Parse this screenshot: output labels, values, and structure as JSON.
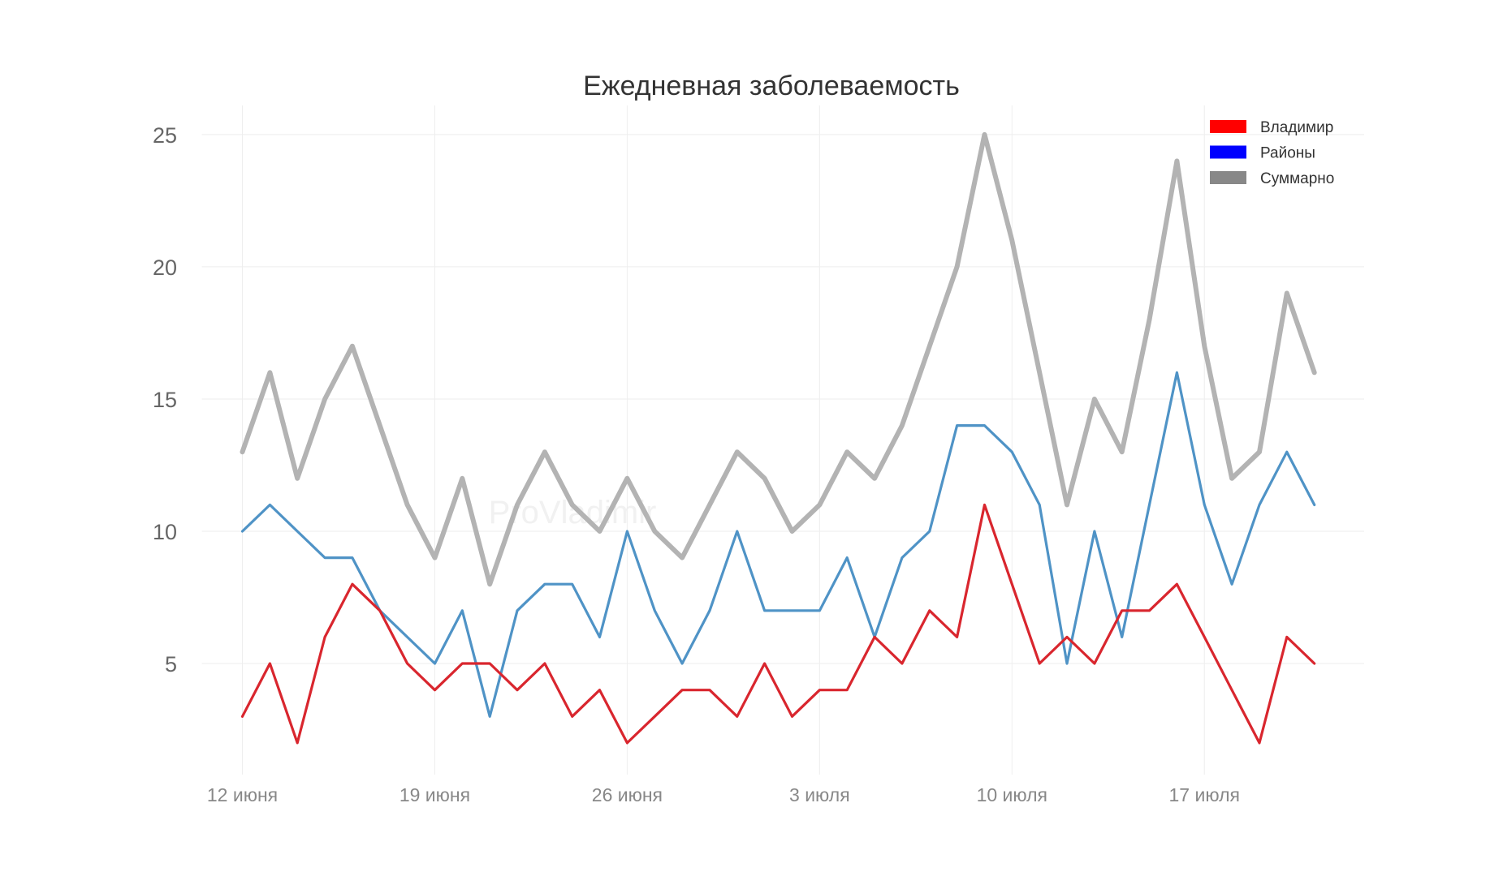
{
  "chart_data": {
    "type": "line",
    "title": "Ежедневная заболеваемость",
    "xlabel": "",
    "ylabel": "",
    "watermark": "ProVladimir",
    "x": [
      "12.06",
      "13.06",
      "14.06",
      "15.06",
      "16.06",
      "17.06",
      "18.06",
      "19.06",
      "20.06",
      "21.06",
      "22.06",
      "23.06",
      "24.06",
      "25.06",
      "26.06",
      "27.06",
      "28.06",
      "29.06",
      "30.06",
      "01.07",
      "02.07",
      "03.07",
      "04.07",
      "05.07",
      "06.07",
      "07.07",
      "08.07",
      "09.07",
      "10.07",
      "11.07",
      "12.07",
      "13.07",
      "14.07",
      "15.07",
      "16.07",
      "17.07",
      "18.07",
      "19.07",
      "20.07",
      "21.07"
    ],
    "x_ticks": [
      {
        "index": 0,
        "label": "12 июня"
      },
      {
        "index": 7,
        "label": "19 июня"
      },
      {
        "index": 14,
        "label": "26 июня"
      },
      {
        "index": 21,
        "label": "3 июля"
      },
      {
        "index": 28,
        "label": "10 июля"
      },
      {
        "index": 35,
        "label": "17 июля"
      }
    ],
    "y_ticks": [
      5,
      10,
      15,
      20,
      25
    ],
    "ylim": [
      0.8,
      26.1
    ],
    "series": [
      {
        "name": "Суммарно",
        "color": "#b3b3b3",
        "legend_color": "#888888",
        "values": [
          13,
          16,
          12,
          15,
          17,
          14,
          11,
          9,
          12,
          8,
          11,
          13,
          11,
          10,
          12,
          10,
          9,
          11,
          13,
          12,
          10,
          11,
          13,
          12,
          14,
          17,
          20,
          25,
          21,
          16,
          11,
          15,
          13,
          18,
          24,
          17,
          12,
          13,
          19,
          16
        ]
      },
      {
        "name": "Районы",
        "color": "#4f93c6",
        "legend_color": "#0000ff",
        "values": [
          10,
          11,
          10,
          9,
          9,
          7,
          6,
          5,
          7,
          3,
          7,
          8,
          8,
          6,
          10,
          7,
          5,
          7,
          10,
          7,
          7,
          7,
          9,
          6,
          9,
          10,
          14,
          14,
          13,
          11,
          5,
          10,
          6,
          11,
          16,
          11,
          8,
          11,
          13,
          11
        ]
      },
      {
        "name": "Владимир",
        "color": "#d9262e",
        "legend_color": "#ff0000",
        "values": [
          3,
          5,
          2,
          6,
          8,
          7,
          5,
          4,
          5,
          5,
          4,
          5,
          3,
          4,
          2,
          3,
          4,
          4,
          3,
          5,
          3,
          4,
          4,
          6,
          5,
          7,
          6,
          11,
          8,
          5,
          6,
          5,
          7,
          7,
          8,
          6,
          4,
          2,
          6,
          5
        ]
      }
    ],
    "legend": {
      "position": "top-right",
      "entries": [
        "Владимир",
        "Районы",
        "Суммарно"
      ]
    }
  }
}
